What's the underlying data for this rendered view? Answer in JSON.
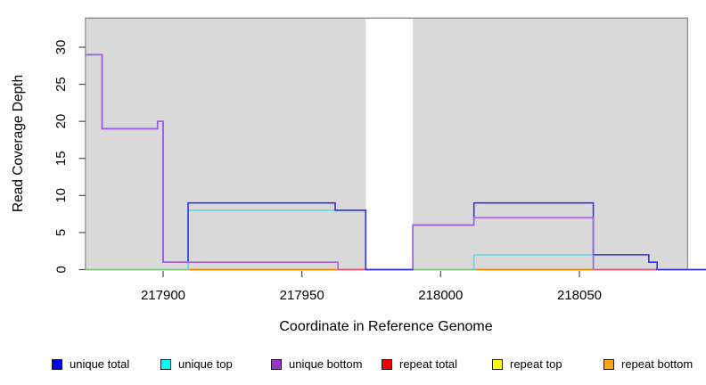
{
  "chart_data": {
    "type": "line",
    "subtype": "step-coverage",
    "title": "",
    "xlabel": "Coordinate in Reference Genome",
    "ylabel": "Read Coverage Depth",
    "xlim": [
      217872,
      218096
    ],
    "ylim": [
      0,
      34
    ],
    "x_ticks": [
      217900,
      217950,
      218000,
      218050
    ],
    "y_ticks": [
      0,
      5,
      10,
      15,
      20,
      25,
      30
    ],
    "grid": false,
    "legend_position": "bottom",
    "plot_background": "#d9d9d9",
    "frame_color": "#8f8f8f",
    "shaded_region": {
      "start": 217872,
      "end": 218089,
      "color": "#d9d9d9"
    },
    "masked_gap_region": {
      "start": 217973,
      "end": 217990,
      "color": "#ffffff"
    },
    "series": [
      {
        "name": "unique total",
        "color": "#3232e8",
        "legend_color": "#0000ee",
        "draw_zero_runs": true,
        "steps": [
          [
            217872,
            29
          ],
          [
            217878,
            19
          ],
          [
            217898,
            20
          ],
          [
            217900,
            1
          ],
          [
            217909,
            9
          ],
          [
            217962,
            8
          ],
          [
            217973,
            0
          ],
          [
            217990,
            6
          ],
          [
            218012,
            9
          ],
          [
            218055,
            2
          ],
          [
            218075,
            1
          ],
          [
            218078,
            0
          ]
        ],
        "x_end": 218096
      },
      {
        "name": "unique top",
        "color": "#5ad9e8",
        "legend_color": "#00ffff",
        "draw_zero_runs": false,
        "steps": [
          [
            217872,
            0
          ],
          [
            217909,
            8
          ],
          [
            217973,
            0
          ],
          [
            218012,
            2
          ],
          [
            218055,
            0
          ]
        ],
        "x_end": 218096
      },
      {
        "name": "unique bottom",
        "color": "#a361e0",
        "legend_color": "#9933cc",
        "draw_zero_runs": false,
        "steps": [
          [
            217872,
            29
          ],
          [
            217878,
            19
          ],
          [
            217898,
            20
          ],
          [
            217900,
            1
          ],
          [
            217963,
            0
          ],
          [
            217990,
            6
          ],
          [
            218012,
            7
          ],
          [
            218055,
            0
          ]
        ],
        "x_end": 218096
      },
      {
        "name": "repeat total",
        "color": "#e8415c",
        "legend_color": "#ee0000",
        "draw_zero_runs": true,
        "steps": [
          [
            217872,
            0
          ]
        ],
        "x_end": 218096
      },
      {
        "name": "repeat top",
        "color": "#ffe81e",
        "legend_color": "#ffff00",
        "draw_zero_runs": true,
        "steps": [
          [
            217872,
            0
          ]
        ],
        "x_end": 218096
      },
      {
        "name": "repeat bottom",
        "color": "#ff8c00",
        "legend_color": "#ffa319",
        "draw_zero_runs": true,
        "steps": [
          [
            217872,
            0
          ]
        ],
        "x_end": 218096
      }
    ],
    "baseline_overlap_segments": [
      {
        "start": 217872,
        "end": 217909,
        "color": "#86ca86"
      },
      {
        "start": 217909,
        "end": 217963,
        "color": "#ff8c00"
      },
      {
        "start": 217963,
        "end": 217973,
        "color": "#e25a78"
      },
      {
        "start": 217973,
        "end": 217990,
        "color": "#5a4be8"
      },
      {
        "start": 217990,
        "end": 218013,
        "color": "#86ca86"
      },
      {
        "start": 218013,
        "end": 218055,
        "color": "#ff8c00"
      },
      {
        "start": 218055,
        "end": 218078,
        "color": "#e25a78"
      }
    ]
  },
  "axes": {
    "x_title": "Coordinate in Reference Genome",
    "y_title": "Read Coverage Depth",
    "x_tick_labels": [
      "217900",
      "217950",
      "218000",
      "218050"
    ],
    "y_tick_labels": [
      "0",
      "5",
      "10",
      "15",
      "20",
      "25",
      "30"
    ]
  },
  "legend": {
    "items": [
      {
        "label": "unique total",
        "color": "#0000ee"
      },
      {
        "label": "unique top",
        "color": "#00ffff"
      },
      {
        "label": "unique bottom",
        "color": "#9933cc"
      },
      {
        "label": "repeat total",
        "color": "#ee0000"
      },
      {
        "label": "repeat top",
        "color": "#ffff00"
      },
      {
        "label": "repeat bottom",
        "color": "#ffa319"
      }
    ]
  }
}
